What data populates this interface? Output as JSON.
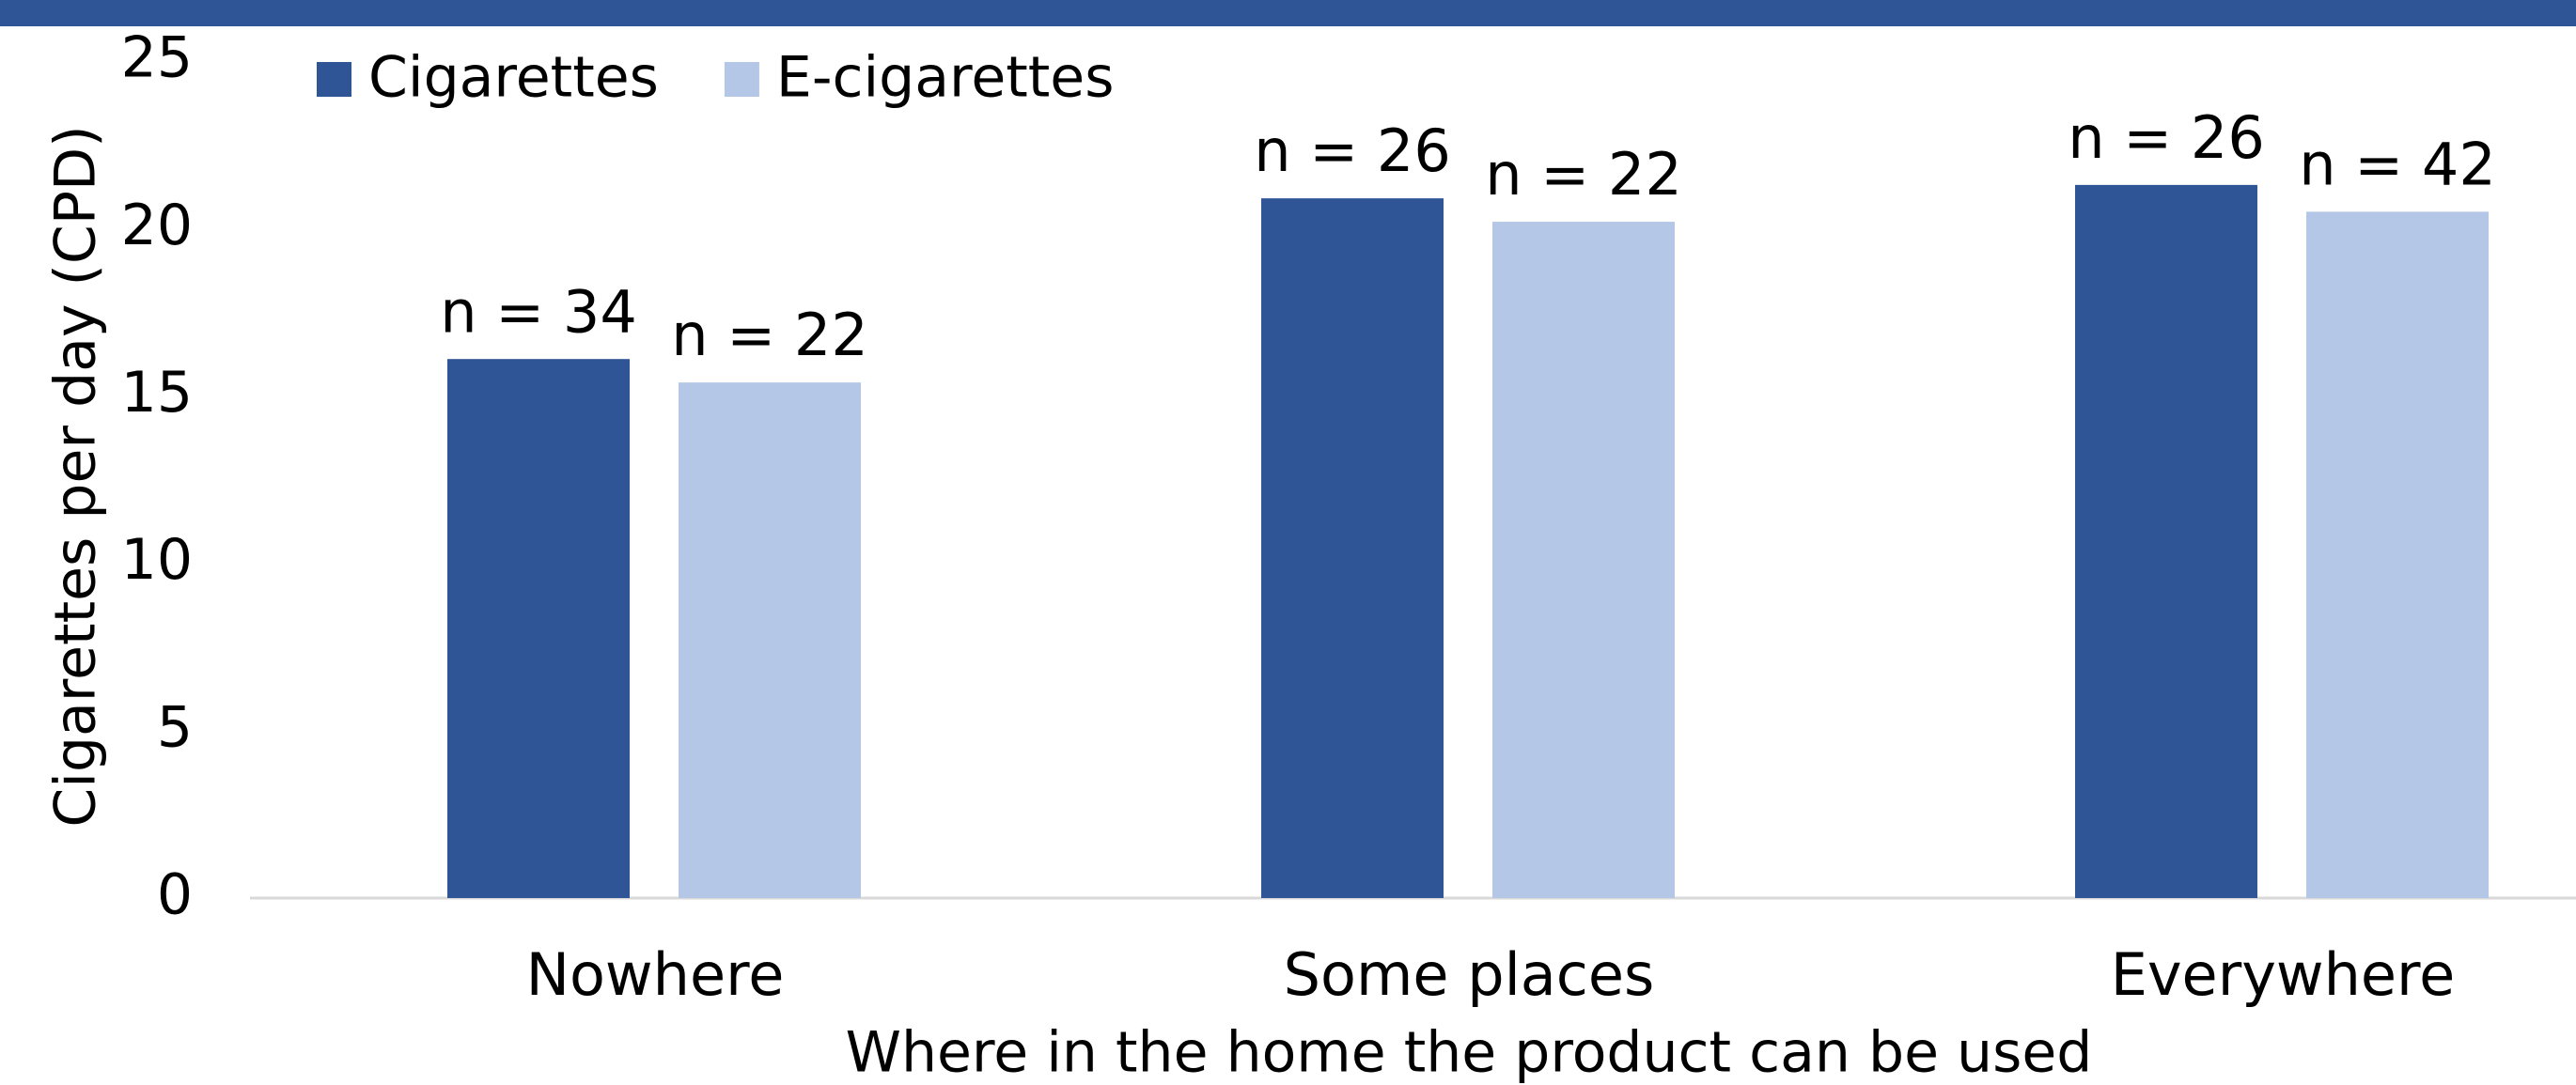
{
  "chart_data": {
    "type": "bar",
    "x_label": "Where in the home the product can be used",
    "y_label": "Cigarettes per day (CPD)",
    "categories": [
      "Nowhere",
      "Some places",
      "Everywhere"
    ],
    "series": [
      {
        "name": "Cigarettes",
        "color": "#2f5597",
        "values": [
          16.1,
          20.9,
          21.3
        ],
        "sample_sizes": [
          "n = 34",
          "n = 26",
          "n = 26"
        ]
      },
      {
        "name": "E-cigarettes",
        "color": "#b4c7e7",
        "values": [
          15.4,
          20.2,
          20.5
        ],
        "sample_sizes": [
          "n = 22",
          "n = 22",
          "n = 42"
        ]
      }
    ],
    "ylim": [
      0,
      25
    ],
    "yticks": [
      0,
      5,
      10,
      15,
      20,
      25
    ],
    "grid": false,
    "legend": "top-left"
  }
}
